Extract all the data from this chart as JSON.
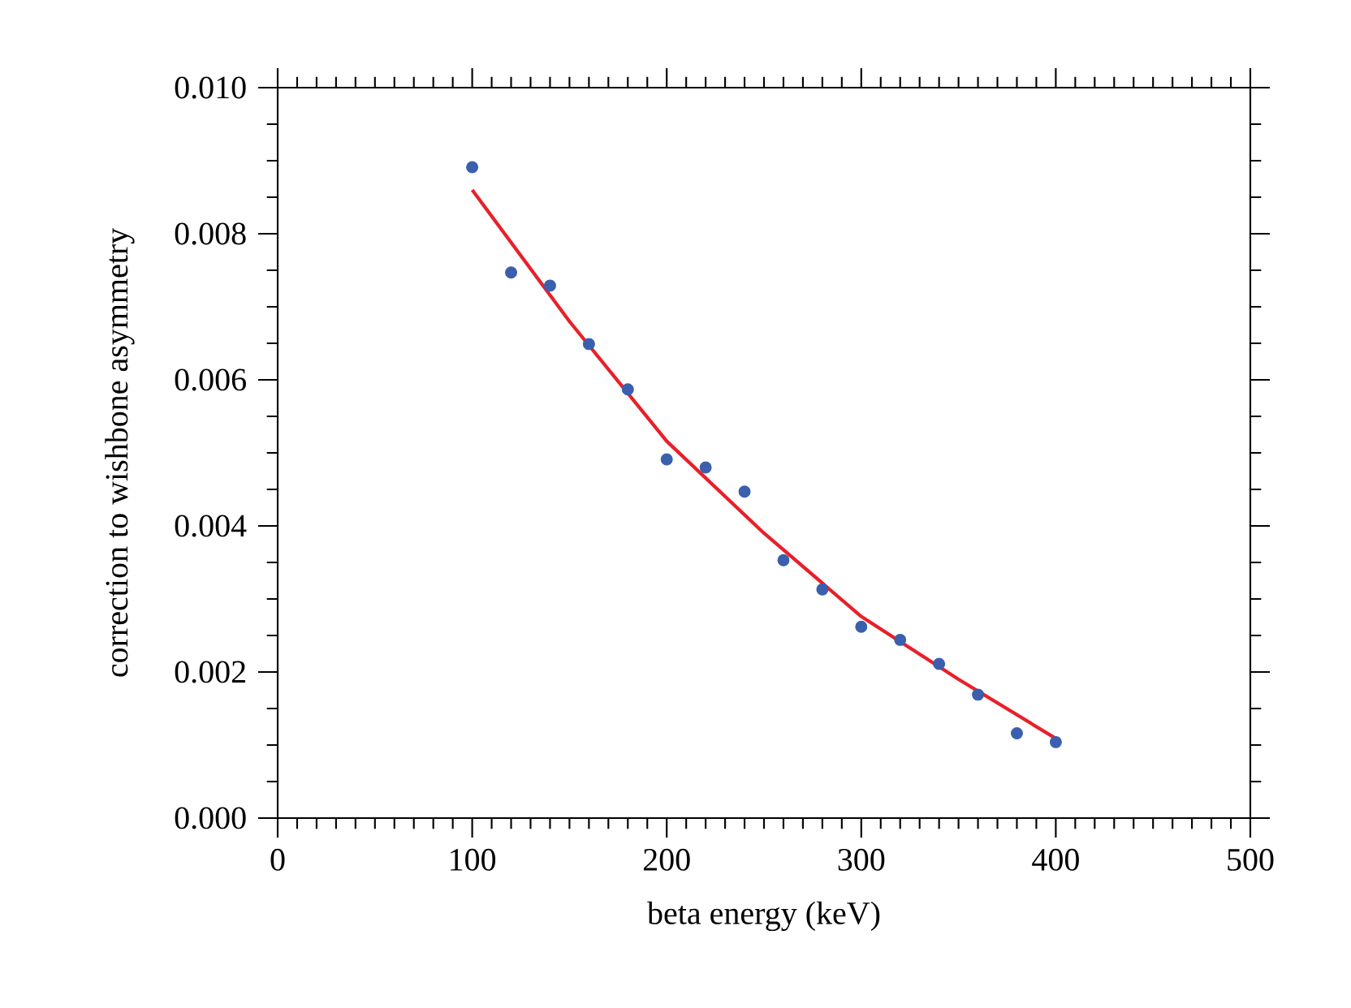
{
  "chart_data": {
    "type": "scatter",
    "xlabel": "beta energy (keV)",
    "ylabel": "correction to wishbone asymmetry",
    "xlim": [
      0,
      500
    ],
    "ylim": [
      0,
      0.01
    ],
    "xticks": [
      0,
      100,
      200,
      300,
      400,
      500
    ],
    "yticks": [
      {
        "value": 0,
        "label": "0.000"
      },
      {
        "value": 0.002,
        "label": "0.002"
      },
      {
        "value": 0.004,
        "label": "0.004"
      },
      {
        "value": 0.006,
        "label": "0.006"
      },
      {
        "value": 0.008,
        "label": "0.008"
      },
      {
        "value": 0.01,
        "label": "0.010"
      }
    ],
    "tick_labels": "xy",
    "series": [
      {
        "color": "#3a5fad",
        "marker": "circle",
        "x": [
          100,
          120,
          140,
          160,
          180,
          200,
          220,
          240,
          260,
          280,
          300,
          320,
          340,
          360,
          380,
          400
        ],
        "values": [
          0.00891,
          0.00747,
          0.00729,
          0.00649,
          0.00587,
          0.00491,
          0.0048,
          0.00447,
          0.00353,
          0.00313,
          0.00262,
          0.00244,
          0.00211,
          0.00169,
          0.00116,
          0.00104
        ]
      },
      {
        "type": "line",
        "color": "#e8202a",
        "marker": "none",
        "line_style": "solid",
        "x": [
          100,
          150,
          200,
          250,
          300,
          350,
          400
        ],
        "values": [
          0.0086,
          0.0068,
          0.00516,
          0.0039,
          0.00276,
          0.0019,
          0.00109
        ]
      }
    ]
  }
}
